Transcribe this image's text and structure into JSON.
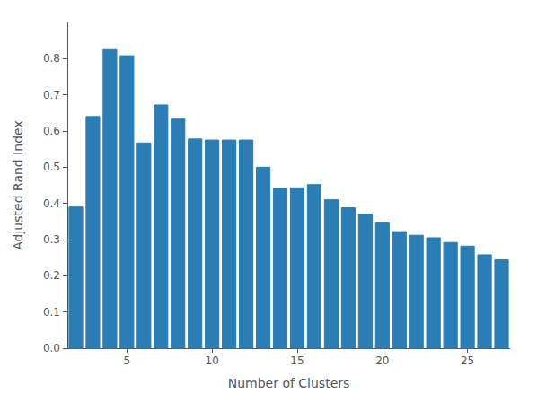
{
  "chart_data": {
    "type": "bar",
    "xlabel": "Number of Clusters",
    "ylabel": "Adjusted Rand Index",
    "x": [
      2,
      3,
      4,
      5,
      6,
      7,
      8,
      9,
      10,
      11,
      12,
      13,
      14,
      15,
      16,
      17,
      18,
      19,
      20,
      21,
      22,
      23,
      24,
      25,
      26,
      27
    ],
    "values": [
      0.39,
      0.64,
      0.825,
      0.808,
      0.567,
      0.672,
      0.633,
      0.578,
      0.575,
      0.575,
      0.575,
      0.5,
      0.442,
      0.443,
      0.452,
      0.41,
      0.388,
      0.37,
      0.348,
      0.322,
      0.312,
      0.305,
      0.292,
      0.282,
      0.258,
      0.244
    ],
    "color": "#2a7db5",
    "xlim": [
      1.5,
      27.5
    ],
    "ylim": [
      0.0,
      0.9
    ],
    "xticks": [
      5,
      10,
      15,
      20,
      25
    ],
    "yticks": [
      {
        "value": 0,
        "label": "0.0"
      },
      0.1,
      0.2,
      0.3,
      0.4,
      0.5,
      0.6,
      0.7,
      0.8
    ],
    "grid": false
  }
}
